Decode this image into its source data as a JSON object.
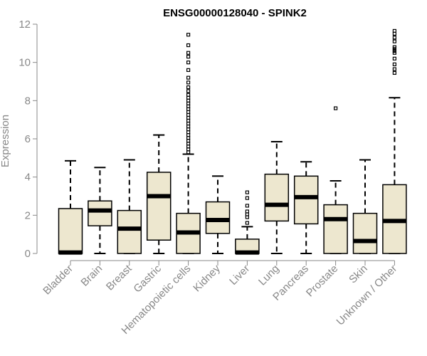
{
  "chart_data": {
    "type": "boxplot",
    "title": "ENSG00000128040 - SPINK2",
    "xlabel": "",
    "ylabel": "Expression",
    "ylim": [
      0,
      12
    ],
    "yticks": [
      0,
      2,
      4,
      6,
      8,
      10,
      12
    ],
    "categories": [
      "Bladder",
      "Brain",
      "Breast",
      "Gastric",
      "Hematopoietic cells",
      "Kidney",
      "Liver",
      "Lung",
      "Pancreas",
      "Prostate",
      "Skin",
      "Unknown / Other"
    ],
    "box_color": "#ede7cf",
    "boxes": [
      {
        "min": 0,
        "q1": 0,
        "median": 0.05,
        "q3": 2.35,
        "max": 4.85,
        "outliers": []
      },
      {
        "min": 0,
        "q1": 1.45,
        "median": 2.25,
        "q3": 2.75,
        "max": 4.5,
        "outliers": []
      },
      {
        "min": 0,
        "q1": 0,
        "median": 1.3,
        "q3": 2.25,
        "max": 4.9,
        "outliers": []
      },
      {
        "min": 0,
        "q1": 0.7,
        "median": 3.0,
        "q3": 4.25,
        "max": 6.2,
        "outliers": []
      },
      {
        "min": 0,
        "q1": 0,
        "median": 1.1,
        "q3": 2.1,
        "max": 5.2,
        "outliers": [
          5.3,
          5.45,
          5.6,
          5.75,
          5.9,
          6.05,
          6.2,
          6.35,
          6.5,
          6.65,
          6.8,
          6.95,
          7.1,
          7.25,
          7.4,
          7.55,
          7.7,
          7.85,
          8.0,
          8.15,
          8.3,
          8.5,
          8.7,
          8.95,
          9.2,
          9.6,
          10.0,
          10.3,
          10.5,
          10.9,
          11.45
        ]
      },
      {
        "min": 0,
        "q1": 1.05,
        "median": 1.75,
        "q3": 2.7,
        "max": 4.05,
        "outliers": []
      },
      {
        "min": 0,
        "q1": 0,
        "median": 0.05,
        "q3": 0.75,
        "max": 1.4,
        "outliers": [
          1.6,
          1.9,
          2.05,
          2.2,
          2.5,
          2.9,
          3.2
        ]
      },
      {
        "min": 0,
        "q1": 1.7,
        "median": 2.55,
        "q3": 4.15,
        "max": 5.85,
        "outliers": []
      },
      {
        "min": 0,
        "q1": 1.55,
        "median": 2.95,
        "q3": 4.05,
        "max": 4.8,
        "outliers": []
      },
      {
        "min": 0,
        "q1": 0,
        "median": 1.8,
        "q3": 2.55,
        "max": 3.8,
        "outliers": [
          7.6
        ]
      },
      {
        "min": 0,
        "q1": 0,
        "median": 0.65,
        "q3": 2.1,
        "max": 4.9,
        "outliers": []
      },
      {
        "min": 0,
        "q1": 0,
        "median": 1.7,
        "q3": 3.6,
        "max": 8.15,
        "outliers": [
          9.45,
          9.65,
          9.9,
          10.2,
          10.5,
          10.6,
          10.7,
          10.8,
          11.1,
          11.3,
          11.5,
          11.65
        ]
      }
    ]
  }
}
